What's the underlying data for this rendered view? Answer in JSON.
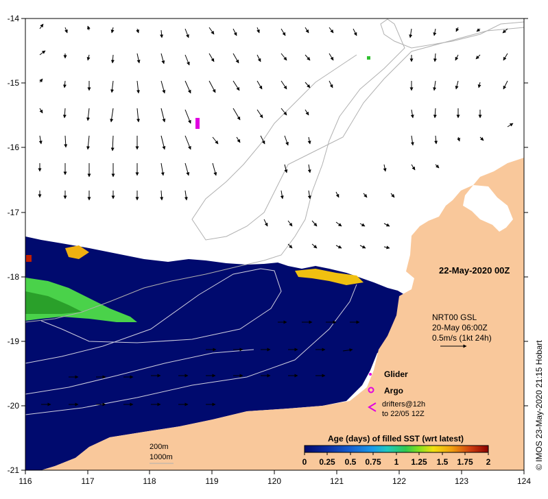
{
  "map": {
    "lon_ticks": [
      "116",
      "117",
      "118",
      "119",
      "120",
      "121",
      "122",
      "123",
      "124"
    ],
    "lat_ticks": [
      "-14",
      "-15",
      "-16",
      "-17",
      "-18",
      "-19",
      "-20",
      "-21"
    ],
    "lon_range": [
      116,
      124
    ],
    "lat_range": [
      -21,
      -14
    ],
    "date_label": "22-May-2020 00Z",
    "credit": "© IMOS 23-May-2020 21:15 Hobart",
    "colors": {
      "land": "#f9c89b",
      "sea_recent": "#000a6e",
      "isobath": "#b0b0b0",
      "glider": "#e000e0"
    }
  },
  "current_info": {
    "line1": "NRT00 GSL",
    "line2": "20-May 06:00Z",
    "line3": "0.5m/s (1kt 24h)"
  },
  "legend": {
    "glider": "Glider",
    "argo": "Argo",
    "drifters_1": "drifters@12h",
    "drifters_2": "to 22/05 12Z"
  },
  "isobaths": {
    "label_200": "200m",
    "label_1000": "1000m"
  },
  "colorbar": {
    "title": "Age (days) of filled SST (wrt latest)",
    "ticks": [
      "0",
      "0.25",
      "0.5",
      "0.75",
      "1",
      "1.25",
      "1.5",
      "1.75",
      "2"
    ],
    "colors": [
      "#000a6e",
      "#0a2aa0",
      "#1560d0",
      "#1a9ae8",
      "#20c8c0",
      "#30c850",
      "#80e020",
      "#f0e010",
      "#f0a010",
      "#d04010",
      "#8a0000"
    ]
  }
}
